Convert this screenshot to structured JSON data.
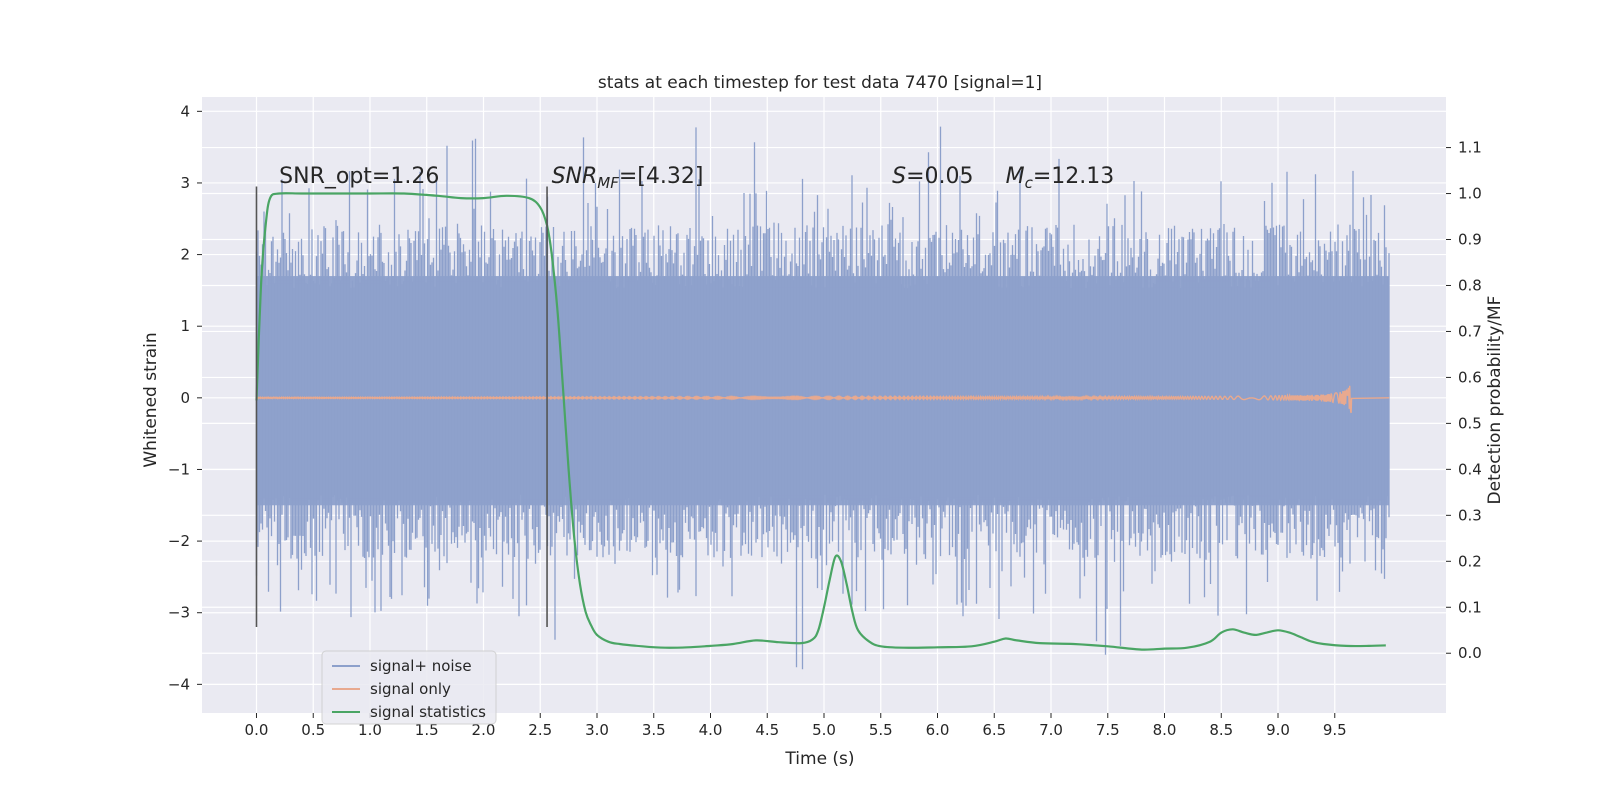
{
  "chart_data": {
    "type": "line",
    "title": "stats at each timestep for test data 7470 [signal=1]",
    "xlabel": "Time (s)",
    "ylabel": "Whitened strain",
    "y2label": "Detection probability/MF",
    "xlim": [
      -0.48,
      10.48
    ],
    "ylim": [
      -4.4,
      4.2
    ],
    "y2lim": [
      -0.13,
      1.21
    ],
    "xticks": [
      0.0,
      0.5,
      1.0,
      1.5,
      2.0,
      2.5,
      3.0,
      3.5,
      4.0,
      4.5,
      5.0,
      5.5,
      6.0,
      6.5,
      7.0,
      7.5,
      8.0,
      8.5,
      9.0,
      9.5
    ],
    "xtick_labels": [
      "0.0",
      "0.5",
      "1.0",
      "1.5",
      "2.0",
      "2.5",
      "3.0",
      "3.5",
      "4.0",
      "4.5",
      "5.0",
      "5.5",
      "6.0",
      "6.5",
      "7.0",
      "7.5",
      "8.0",
      "8.5",
      "9.0",
      "9.5"
    ],
    "yticks": [
      4,
      3,
      2,
      1,
      0,
      -1,
      -2,
      -3,
      -4
    ],
    "ytick_labels": [
      "4",
      "3",
      "2",
      "1",
      "0",
      "−1",
      "−2",
      "−3",
      "−4"
    ],
    "y2ticks": [
      1.1,
      1.0,
      0.9,
      0.8,
      0.7,
      0.6,
      0.5,
      0.4,
      0.3,
      0.2,
      0.1,
      0.0
    ],
    "y2tick_labels": [
      "1.1",
      "1.0",
      "0.9",
      "0.8",
      "0.7",
      "0.6",
      "0.5",
      "0.4",
      "0.3",
      "0.2",
      "0.1",
      "0.0"
    ],
    "grid": true,
    "legend_position": "lower-left",
    "vertical_lines": {
      "x": [
        0.0,
        2.56
      ],
      "y_range": [
        -3.2,
        2.95
      ],
      "color": "#555555"
    },
    "annotations": [
      {
        "text": "SNR_opt=1.26",
        "x": 0.2,
        "y": 3.0
      },
      {
        "text": "SNR",
        "sub": "MF",
        "tail": "=[4.32]",
        "italic": true,
        "x": 2.6,
        "y": 3.0
      },
      {
        "text": "S",
        "tail": "=0.05",
        "italic": true,
        "x": 5.6,
        "y": 3.0
      },
      {
        "text": "M",
        "sub": "c",
        "tail": "=12.13",
        "italic": true,
        "x": 6.6,
        "y": 3.0
      }
    ],
    "series": [
      {
        "name": "signal+ noise",
        "color": "#8da0cb",
        "axis": "left",
        "style": "noise",
        "x_range": [
          0.0,
          9.98
        ],
        "envelope_typical": [
          -1.5,
          1.7
        ],
        "envelope_extreme": [
          -4.05,
          3.8
        ]
      },
      {
        "name": "signal only",
        "color": "#e8a98f",
        "axis": "left",
        "style": "chirp",
        "x_range": [
          0.0,
          9.65
        ],
        "peak_amplitude": 0.25,
        "merger_time": 9.65
      },
      {
        "name": "signal statistics",
        "color": "#4aa564",
        "axis": "right",
        "style": "line",
        "x": [
          0.0,
          0.04,
          0.08,
          0.12,
          0.2,
          0.4,
          0.7,
          1.0,
          1.3,
          1.6,
          1.8,
          2.0,
          2.2,
          2.4,
          2.5,
          2.56,
          2.6,
          2.65,
          2.7,
          2.75,
          2.8,
          2.85,
          2.9,
          2.95,
          3.0,
          3.1,
          3.2,
          3.4,
          3.6,
          3.8,
          4.0,
          4.2,
          4.4,
          4.6,
          4.8,
          4.9,
          4.95,
          5.0,
          5.05,
          5.1,
          5.15,
          5.2,
          5.25,
          5.3,
          5.4,
          5.5,
          5.7,
          6.0,
          6.3,
          6.5,
          6.6,
          6.7,
          6.9,
          7.2,
          7.5,
          7.8,
          8.0,
          8.2,
          8.4,
          8.5,
          8.6,
          8.7,
          8.8,
          8.9,
          9.0,
          9.1,
          9.2,
          9.3,
          9.4,
          9.6,
          9.8,
          9.95
        ],
        "values": [
          0.55,
          0.8,
          0.93,
          0.99,
          1.0,
          1.0,
          1.0,
          1.0,
          1.0,
          0.995,
          0.99,
          0.99,
          0.995,
          0.99,
          0.97,
          0.93,
          0.87,
          0.75,
          0.58,
          0.4,
          0.25,
          0.15,
          0.09,
          0.06,
          0.04,
          0.025,
          0.02,
          0.015,
          0.012,
          0.013,
          0.016,
          0.02,
          0.028,
          0.024,
          0.022,
          0.03,
          0.05,
          0.1,
          0.16,
          0.21,
          0.2,
          0.15,
          0.09,
          0.05,
          0.025,
          0.015,
          0.012,
          0.013,
          0.015,
          0.025,
          0.032,
          0.028,
          0.022,
          0.02,
          0.015,
          0.008,
          0.01,
          0.012,
          0.025,
          0.045,
          0.052,
          0.045,
          0.04,
          0.045,
          0.05,
          0.045,
          0.035,
          0.025,
          0.02,
          0.016,
          0.016,
          0.017
        ]
      }
    ]
  }
}
